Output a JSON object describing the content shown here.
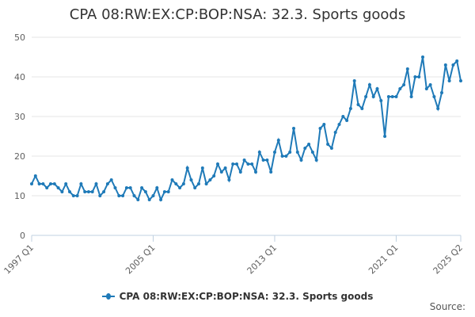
{
  "chart_data": {
    "type": "line",
    "title": "CPA 08:RW:EX:CP:BOP:NSA: 32.3. Sports goods",
    "xlabel": "",
    "ylabel": "",
    "ylim": [
      0,
      50
    ],
    "yticks": [
      0,
      10,
      20,
      30,
      40,
      50
    ],
    "x_tick_labels": [
      "1997 Q1",
      "2005 Q1",
      "2013 Q1",
      "2021 Q1",
      "2025 Q2"
    ],
    "x_start": "1997 Q1",
    "x_end": "2025 Q2",
    "grid": true,
    "legend_position": "bottom",
    "series": [
      {
        "name": "CPA 08:RW:EX:CP:BOP:NSA: 32.3. Sports goods",
        "color": "#1f7ab8",
        "values": [
          13,
          15,
          13,
          13,
          12,
          13,
          13,
          12,
          11,
          13,
          11,
          10,
          10,
          13,
          11,
          11,
          11,
          13,
          10,
          11,
          13,
          14,
          12,
          10,
          10,
          12,
          12,
          10,
          9,
          12,
          11,
          9,
          10,
          12,
          9,
          11,
          11,
          14,
          13,
          12,
          13,
          17,
          14,
          12,
          13,
          17,
          13,
          14,
          15,
          18,
          16,
          17,
          14,
          18,
          18,
          16,
          19,
          18,
          18,
          16,
          21,
          19,
          19,
          16,
          21,
          24,
          20,
          20,
          21,
          27,
          21,
          19,
          22,
          23,
          21,
          19,
          27,
          28,
          23,
          22,
          26,
          28,
          30,
          29,
          32,
          39,
          33,
          32,
          35,
          38,
          35,
          37,
          34,
          25,
          35,
          35,
          35,
          37,
          38,
          42,
          35,
          40,
          40,
          45,
          37,
          38,
          35,
          32,
          36,
          43,
          39,
          43,
          44,
          39
        ]
      }
    ]
  },
  "legend": {
    "label": "CPA 08:RW:EX:CP:BOP:NSA: 32.3. Sports goods"
  },
  "credit": "Source:"
}
